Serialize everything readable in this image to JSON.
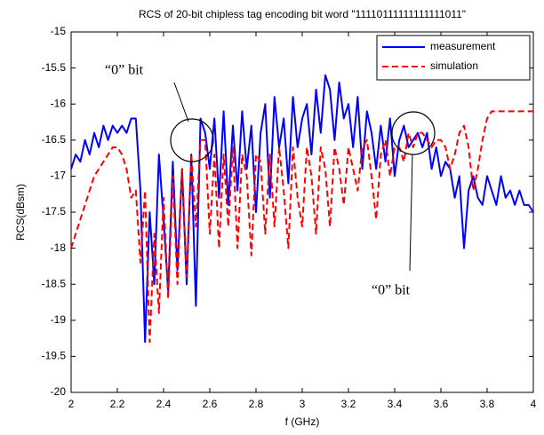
{
  "chart_data": {
    "type": "line",
    "title": "RCS of 20-bit chipless tag encoding bit word \"11110111111111111011\"",
    "x_label": "f (GHz)",
    "y_label": "RCS(dBsm)",
    "x": [
      2.0,
      2.02,
      2.04,
      2.06,
      2.08,
      2.1,
      2.12,
      2.14,
      2.16,
      2.18,
      2.2,
      2.22,
      2.24,
      2.26,
      2.28,
      2.3,
      2.32,
      2.34,
      2.36,
      2.38,
      2.4,
      2.42,
      2.44,
      2.46,
      2.48,
      2.5,
      2.52,
      2.54,
      2.56,
      2.58,
      2.6,
      2.62,
      2.64,
      2.66,
      2.68,
      2.7,
      2.72,
      2.74,
      2.76,
      2.78,
      2.8,
      2.82,
      2.84,
      2.86,
      2.88,
      2.9,
      2.92,
      2.94,
      2.96,
      2.98,
      3.0,
      3.02,
      3.04,
      3.06,
      3.08,
      3.1,
      3.12,
      3.14,
      3.16,
      3.18,
      3.2,
      3.22,
      3.24,
      3.26,
      3.28,
      3.3,
      3.32,
      3.34,
      3.36,
      3.38,
      3.4,
      3.42,
      3.44,
      3.46,
      3.48,
      3.5,
      3.52,
      3.54,
      3.56,
      3.58,
      3.6,
      3.62,
      3.64,
      3.66,
      3.68,
      3.7,
      3.72,
      3.74,
      3.76,
      3.78,
      3.8,
      3.82,
      3.84,
      3.86,
      3.88,
      3.9,
      3.92,
      3.94,
      3.96,
      3.98,
      4.0
    ],
    "series": [
      {
        "name": "measurement",
        "color": "#0000ff",
        "dash": false,
        "values": [
          -16.9,
          -16.7,
          -16.8,
          -16.5,
          -16.7,
          -16.4,
          -16.6,
          -16.3,
          -16.5,
          -16.3,
          -16.4,
          -16.3,
          -16.4,
          -16.2,
          -16.2,
          -17.2,
          -19.3,
          -17.5,
          -18.5,
          -16.7,
          -17.6,
          -18.6,
          -16.8,
          -18.3,
          -16.9,
          -18.5,
          -16.7,
          -18.8,
          -16.2,
          -16.4,
          -16.9,
          -16.2,
          -17.3,
          -16.1,
          -17.4,
          -16.3,
          -17.2,
          -16.1,
          -16.9,
          -16.3,
          -17.5,
          -16.4,
          -16.0,
          -17.3,
          -15.9,
          -16.6,
          -16.2,
          -17.1,
          -15.9,
          -16.6,
          -16.2,
          -16.0,
          -16.7,
          -15.8,
          -16.4,
          -15.6,
          -15.8,
          -16.5,
          -15.7,
          -16.2,
          -16.0,
          -16.6,
          -15.9,
          -16.9,
          -16.1,
          -16.4,
          -16.9,
          -16.3,
          -16.8,
          -16.2,
          -17.0,
          -16.5,
          -16.3,
          -16.6,
          -16.5,
          -16.4,
          -16.6,
          -16.4,
          -16.9,
          -16.6,
          -17.0,
          -16.8,
          -16.9,
          -17.3,
          -17.0,
          -18.0,
          -17.2,
          -17.0,
          -17.3,
          -17.4,
          -17.0,
          -17.2,
          -17.4,
          -17.0,
          -17.3,
          -17.2,
          -17.4,
          -17.2,
          -17.4,
          -17.4,
          -17.5
        ]
      },
      {
        "name": "simulation",
        "color": "#ff0000",
        "dash": true,
        "values": [
          -18.0,
          -17.8,
          -17.6,
          -17.4,
          -17.2,
          -17.0,
          -16.9,
          -16.8,
          -16.7,
          -16.6,
          -16.6,
          -16.7,
          -16.9,
          -17.3,
          -17.2,
          -18.2,
          -17.2,
          -19.3,
          -17.8,
          -18.9,
          -17.3,
          -18.7,
          -17.0,
          -18.5,
          -16.9,
          -18.4,
          -16.7,
          -17.7,
          -16.5,
          -16.5,
          -17.8,
          -16.7,
          -18.0,
          -16.7,
          -17.7,
          -16.6,
          -18.0,
          -16.7,
          -17.0,
          -18.1,
          -16.7,
          -16.8,
          -17.8,
          -16.7,
          -17.7,
          -16.6,
          -17.2,
          -18.0,
          -16.6,
          -17.3,
          -17.7,
          -16.6,
          -17.0,
          -17.8,
          -16.6,
          -16.9,
          -17.7,
          -16.6,
          -16.9,
          -17.4,
          -16.6,
          -16.9,
          -17.2,
          -16.6,
          -16.5,
          -17.0,
          -17.6,
          -16.7,
          -16.5,
          -17.0,
          -16.6,
          -16.6,
          -16.8,
          -16.4,
          -16.6,
          -16.4,
          -16.4,
          -16.5,
          -16.6,
          -16.5,
          -16.5,
          -16.6,
          -16.9,
          -16.7,
          -16.4,
          -16.3,
          -16.6,
          -17.2,
          -16.9,
          -16.5,
          -16.2,
          -16.1,
          -16.1,
          -16.1,
          -16.1,
          -16.1,
          -16.1,
          -16.1,
          -16.1,
          -16.1,
          -16.1
        ]
      }
    ],
    "xlim": [
      2,
      4
    ],
    "ylim": [
      -20,
      -15
    ],
    "xticks": [
      2,
      2.2,
      2.4,
      2.6,
      2.8,
      3,
      3.2,
      3.4,
      3.6,
      3.8,
      4
    ],
    "yticks": [
      -20,
      -19.5,
      -19,
      -18.5,
      -18,
      -17.5,
      -17,
      -16.5,
      -16,
      -15.5,
      -15
    ],
    "legend": "upper right",
    "annotations": [
      "“0” bit",
      "“0” bit"
    ]
  }
}
